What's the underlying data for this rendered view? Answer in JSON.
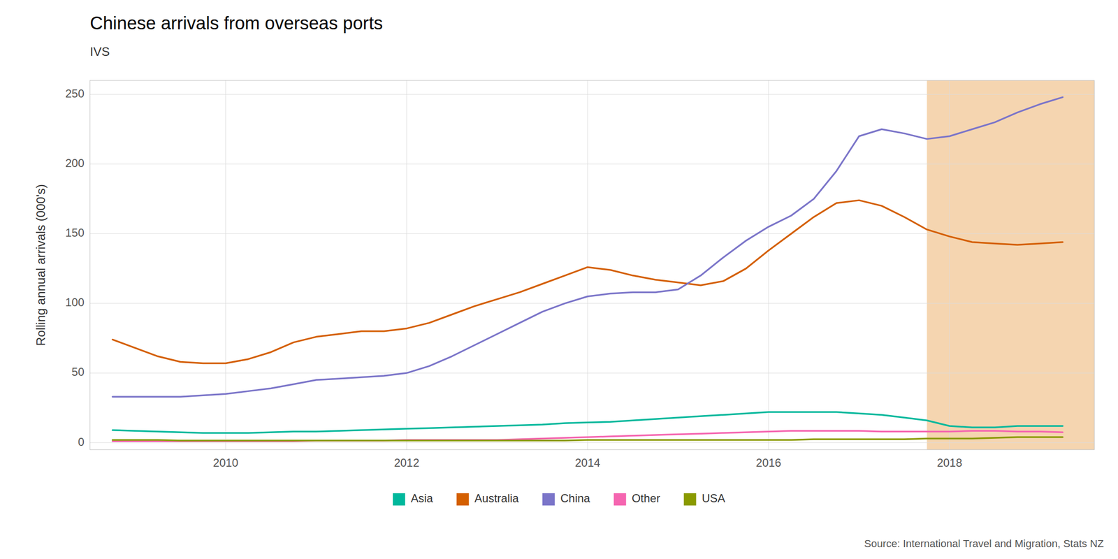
{
  "chart_data": {
    "type": "line",
    "title": "Chinese arrivals from overseas ports",
    "subtitle": "IVS",
    "ylabel": "Rolling annual arrivals (000's)",
    "source": "Source: International Travel and Migration, Stats NZ",
    "x": [
      2008.75,
      2009.0,
      2009.25,
      2009.5,
      2009.75,
      2010.0,
      2010.25,
      2010.5,
      2010.75,
      2011.0,
      2011.25,
      2011.5,
      2011.75,
      2012.0,
      2012.25,
      2012.5,
      2012.75,
      2013.0,
      2013.25,
      2013.5,
      2013.75,
      2014.0,
      2014.25,
      2014.5,
      2014.75,
      2015.0,
      2015.25,
      2015.5,
      2015.75,
      2016.0,
      2016.25,
      2016.5,
      2016.75,
      2017.0,
      2017.25,
      2017.5,
      2017.75,
      2018.0,
      2018.25,
      2018.5,
      2018.75,
      2019.0,
      2019.25
    ],
    "series": [
      {
        "name": "Asia",
        "color": "#00b89c",
        "values": [
          9,
          8.5,
          8,
          7.5,
          7,
          7,
          7,
          7.5,
          8,
          8,
          8.5,
          9,
          9.5,
          10,
          10.5,
          11,
          11.5,
          12,
          12.5,
          13,
          14,
          14.5,
          15,
          16,
          17,
          18,
          19,
          20,
          21,
          22,
          22,
          22,
          22,
          21,
          20,
          18,
          16,
          12,
          11,
          11,
          12,
          12,
          12
        ]
      },
      {
        "name": "Australia",
        "color": "#d45f00",
        "values": [
          74,
          68,
          62,
          58,
          57,
          57,
          60,
          65,
          72,
          76,
          78,
          80,
          80,
          82,
          86,
          92,
          98,
          103,
          108,
          114,
          120,
          126,
          124,
          120,
          117,
          115,
          113,
          116,
          125,
          138,
          150,
          162,
          172,
          174,
          170,
          162,
          153,
          148,
          144,
          143,
          142,
          143,
          144
        ]
      },
      {
        "name": "China",
        "color": "#7b75c9",
        "values": [
          33,
          33,
          33,
          33,
          34,
          35,
          37,
          39,
          42,
          45,
          46,
          47,
          48,
          50,
          55,
          62,
          70,
          78,
          86,
          94,
          100,
          105,
          107,
          108,
          108,
          110,
          120,
          133,
          145,
          155,
          163,
          175,
          195,
          220,
          225,
          222,
          218,
          220,
          225,
          230,
          237,
          243,
          248
        ]
      },
      {
        "name": "Other",
        "color": "#f565b0",
        "values": [
          1,
          1,
          1,
          1,
          1,
          1,
          1,
          1,
          1,
          1.5,
          1.5,
          1.5,
          1.5,
          2,
          2,
          2,
          2,
          2,
          2.5,
          3,
          3.5,
          4,
          4.5,
          5,
          5.5,
          6,
          6.5,
          7,
          7.5,
          8,
          8.5,
          8.5,
          8.5,
          8.5,
          8,
          8,
          8,
          8,
          8.5,
          8.5,
          8,
          8,
          7.5
        ]
      },
      {
        "name": "USA",
        "color": "#8a9a00",
        "values": [
          2,
          2,
          2,
          1.5,
          1.5,
          1.5,
          1.5,
          1.5,
          1.5,
          1.5,
          1.5,
          1.5,
          1.5,
          1.5,
          1.5,
          1.5,
          1.5,
          1.5,
          1.5,
          1.5,
          1.5,
          2,
          2,
          2,
          2,
          2,
          2,
          2,
          2,
          2,
          2,
          2.5,
          2.5,
          2.5,
          2.5,
          2.5,
          3,
          3,
          3,
          3.5,
          4,
          4,
          4
        ]
      }
    ],
    "shaded_region": {
      "x": [
        2017.75,
        2019.6
      ],
      "color": "#f5d5b0"
    },
    "xlim": [
      2008.5,
      2019.6
    ],
    "xticks": [
      2010,
      2012,
      2014,
      2016,
      2018
    ],
    "ylim": [
      -5,
      260
    ],
    "yticks": [
      0,
      50,
      100,
      150,
      200,
      250
    ],
    "grid": true,
    "legend": "bottom"
  }
}
